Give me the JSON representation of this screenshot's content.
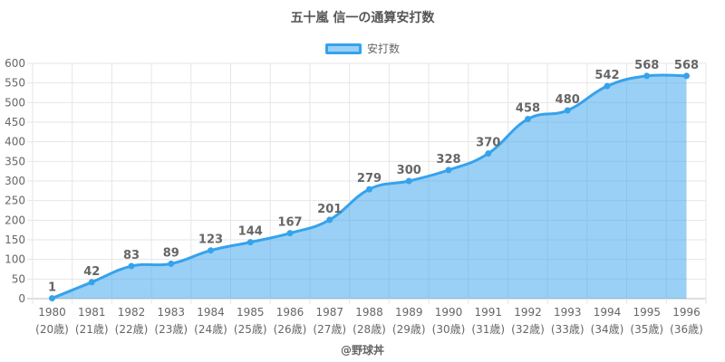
{
  "title": "五十嵐 信一の通算安打数",
  "credit": "@野球丼",
  "colors": {
    "line": "#36a2eb",
    "fill": "rgba(54,162,235,0.5)",
    "grid": "#e6e6e6",
    "text": "#666666"
  },
  "chart_data": {
    "type": "area",
    "title": "五十嵐 信一の通算安打数",
    "categories": [
      "1980",
      "1981",
      "1982",
      "1983",
      "1984",
      "1985",
      "1986",
      "1987",
      "1988",
      "1989",
      "1990",
      "1991",
      "1992",
      "1993",
      "1994",
      "1995",
      "1996"
    ],
    "category_sublabels": [
      "(20歳)",
      "(21歳)",
      "(22歳)",
      "(23歳)",
      "(24歳)",
      "(25歳)",
      "(26歳)",
      "(27歳)",
      "(28歳)",
      "(29歳)",
      "(30歳)",
      "(31歳)",
      "(32歳)",
      "(33歳)",
      "(34歳)",
      "(35歳)",
      "(36歳)"
    ],
    "series": [
      {
        "name": "安打数",
        "values": [
          1,
          42,
          83,
          89,
          123,
          144,
          167,
          201,
          279,
          300,
          328,
          370,
          458,
          480,
          542,
          568,
          568
        ]
      }
    ],
    "ylim": [
      0,
      600
    ],
    "y_ticks": [
      0,
      50,
      100,
      150,
      200,
      250,
      300,
      350,
      400,
      450,
      500,
      550,
      600
    ],
    "grid": true,
    "legend_position": "top-center"
  }
}
